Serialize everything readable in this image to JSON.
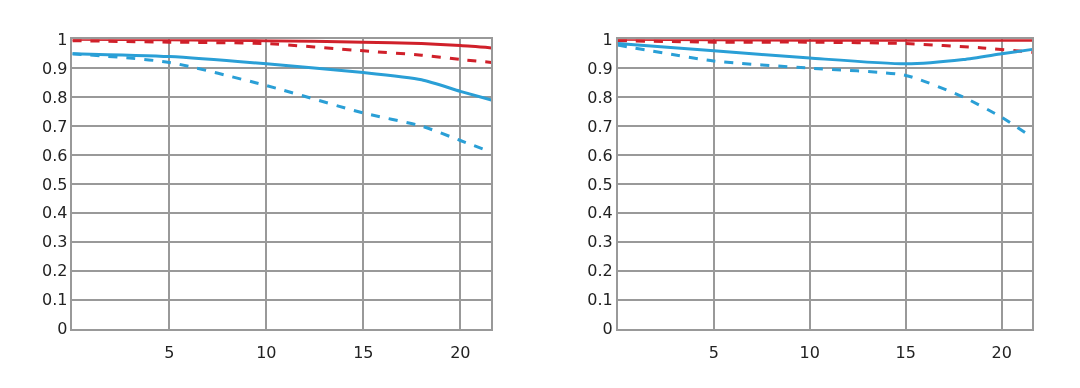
{
  "chart_data": [
    {
      "type": "line",
      "xlim": [
        0,
        21.6
      ],
      "xticks": [
        5,
        10,
        15,
        20
      ],
      "ylim": [
        0,
        1
      ],
      "yticks": [
        0,
        0.1,
        0.2,
        0.3,
        0.4,
        0.5,
        0.6,
        0.7,
        0.8,
        0.9,
        1
      ],
      "grid": true,
      "marker": "none",
      "series": [
        {
          "color": "#d0202a",
          "line_style": "solid",
          "x": [
            0,
            5,
            10,
            15,
            18,
            20,
            21.6
          ],
          "values": [
            1.0,
            0.998,
            0.995,
            0.99,
            0.985,
            0.978,
            0.97
          ]
        },
        {
          "color": "#d0202a",
          "line_style": "dashed",
          "x": [
            0,
            5,
            10,
            15,
            18,
            20,
            21.6
          ],
          "values": [
            0.995,
            0.99,
            0.985,
            0.96,
            0.945,
            0.93,
            0.92
          ]
        },
        {
          "color": "#2a9fd6",
          "line_style": "solid",
          "x": [
            0,
            5,
            10,
            15,
            18,
            20,
            21.6
          ],
          "values": [
            0.95,
            0.94,
            0.915,
            0.885,
            0.86,
            0.82,
            0.79
          ]
        },
        {
          "color": "#2a9fd6",
          "line_style": "dashed",
          "x": [
            0,
            5,
            10,
            15,
            18,
            20,
            21.6
          ],
          "values": [
            0.95,
            0.92,
            0.84,
            0.745,
            0.7,
            0.65,
            0.61
          ]
        }
      ]
    },
    {
      "type": "line",
      "xlim": [
        0,
        21.6
      ],
      "xticks": [
        5,
        10,
        15,
        20
      ],
      "ylim": [
        0,
        1
      ],
      "yticks": [
        0,
        0.1,
        0.2,
        0.3,
        0.4,
        0.5,
        0.6,
        0.7,
        0.8,
        0.9,
        1
      ],
      "grid": true,
      "marker": "none",
      "series": [
        {
          "color": "#d0202a",
          "line_style": "solid",
          "x": [
            0,
            5,
            10,
            15,
            20,
            21.6
          ],
          "values": [
            1.0,
            0.998,
            0.997,
            0.997,
            0.997,
            0.997
          ]
        },
        {
          "color": "#d0202a",
          "line_style": "dashed",
          "x": [
            0,
            5,
            10,
            15,
            19,
            21.6
          ],
          "values": [
            0.995,
            0.99,
            0.99,
            0.985,
            0.97,
            0.955
          ]
        },
        {
          "color": "#2a9fd6",
          "line_style": "solid",
          "x": [
            0,
            5,
            10,
            15,
            18,
            20,
            21.6
          ],
          "values": [
            0.985,
            0.96,
            0.935,
            0.915,
            0.93,
            0.95,
            0.965
          ]
        },
        {
          "color": "#2a9fd6",
          "line_style": "dashed",
          "x": [
            0,
            5,
            10,
            15,
            18,
            20,
            21.6
          ],
          "values": [
            0.98,
            0.925,
            0.9,
            0.875,
            0.8,
            0.73,
            0.66
          ]
        }
      ]
    }
  ]
}
